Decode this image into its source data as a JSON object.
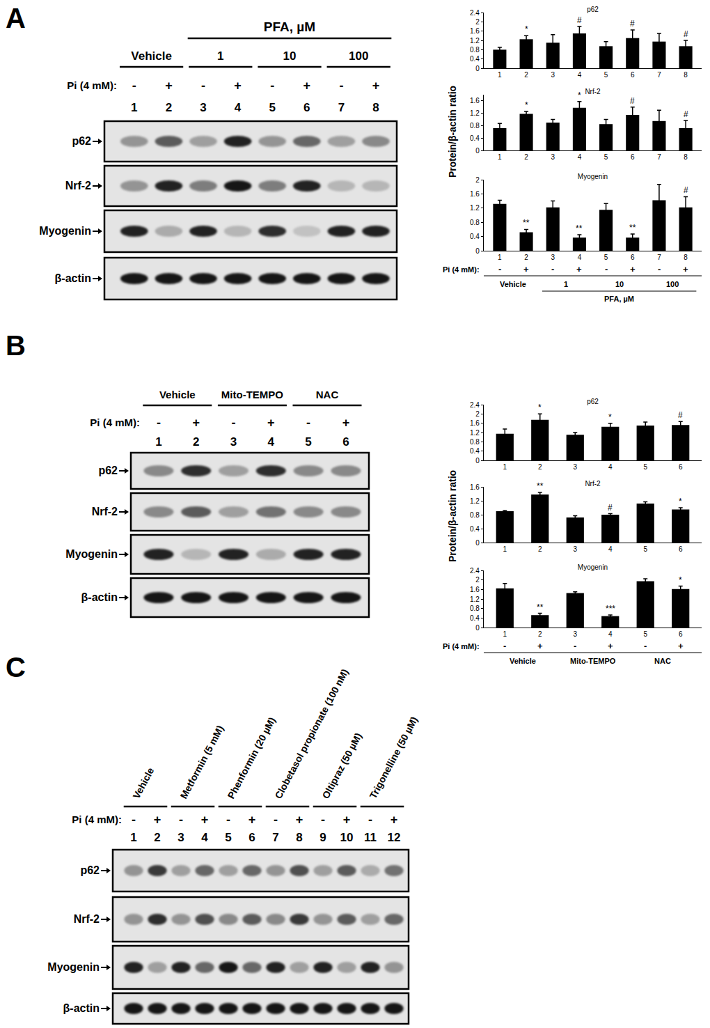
{
  "figure": {
    "panels": [
      {
        "label": "A",
        "y_label": "Protein/β-actin ratio",
        "blot": {
          "super_group": {
            "text": "PFA, µM",
            "lanes": [
              3,
              8
            ]
          },
          "groups": [
            {
              "text": "Vehicle",
              "lanes": [
                1,
                2
              ]
            },
            {
              "text": "1",
              "lanes": [
                3,
                4
              ]
            },
            {
              "text": "10",
              "lanes": [
                5,
                6
              ]
            },
            {
              "text": "100",
              "lanes": [
                7,
                8
              ]
            }
          ],
          "pi_label": "Pi (4 mM):",
          "pi": [
            "-",
            "+",
            "-",
            "+",
            "-",
            "+",
            "-",
            "+"
          ],
          "lanes": [
            1,
            2,
            3,
            4,
            5,
            6,
            7,
            8
          ],
          "rows": [
            {
              "name": "p62",
              "intensity": [
                0.35,
                0.6,
                0.3,
                0.85,
                0.35,
                0.55,
                0.3,
                0.4
              ]
            },
            {
              "name": "Nrf-2",
              "intensity": [
                0.35,
                0.85,
                0.45,
                0.9,
                0.45,
                0.85,
                0.2,
                0.2
              ]
            },
            {
              "name": "Myogenin",
              "intensity": [
                0.85,
                0.25,
                0.85,
                0.2,
                0.8,
                0.15,
                0.85,
                0.85
              ]
            },
            {
              "name": "β-actin",
              "intensity": [
                0.9,
                0.9,
                0.9,
                0.9,
                0.9,
                0.9,
                0.9,
                0.9
              ]
            }
          ]
        }
      },
      {
        "label": "B",
        "y_label": "Protein/β-actin ratio",
        "blot": {
          "groups": [
            {
              "text": "Vehicle",
              "lanes": [
                1,
                2
              ]
            },
            {
              "text": "Mito-TEMPO",
              "lanes": [
                3,
                4
              ]
            },
            {
              "text": "NAC",
              "lanes": [
                5,
                6
              ]
            }
          ],
          "pi_label": "Pi (4 mM):",
          "pi": [
            "-",
            "+",
            "-",
            "+",
            "-",
            "+"
          ],
          "lanes": [
            1,
            2,
            3,
            4,
            5,
            6
          ],
          "rows": [
            {
              "name": "p62",
              "intensity": [
                0.4,
                0.8,
                0.3,
                0.8,
                0.4,
                0.4
              ]
            },
            {
              "name": "Nrf-2",
              "intensity": [
                0.4,
                0.6,
                0.3,
                0.5,
                0.4,
                0.4
              ]
            },
            {
              "name": "Myogenin",
              "intensity": [
                0.85,
                0.2,
                0.85,
                0.25,
                0.85,
                0.85
              ]
            },
            {
              "name": "β-actin",
              "intensity": [
                0.9,
                0.9,
                0.9,
                0.9,
                0.9,
                0.9
              ]
            }
          ]
        }
      },
      {
        "label": "C",
        "blot": {
          "groups": [
            {
              "text": "Vehicle",
              "lanes": [
                1,
                2
              ]
            },
            {
              "text": "Metformin (5 mM)",
              "lanes": [
                3,
                4
              ]
            },
            {
              "text": "Phenformin (20 µM)",
              "lanes": [
                5,
                6
              ]
            },
            {
              "text": "Clobetasol propionate (100 nM)",
              "lanes": [
                7,
                8
              ]
            },
            {
              "text": "Oltipraz (50 µM)",
              "lanes": [
                9,
                10
              ]
            },
            {
              "text": "Trigonelline (50 µM)",
              "lanes": [
                11,
                12
              ]
            }
          ],
          "pi_label": "Pi (4 mM):",
          "pi": [
            "-",
            "+",
            "-",
            "+",
            "-",
            "+",
            "-",
            "+",
            "-",
            "+",
            "-",
            "+"
          ],
          "lanes": [
            1,
            2,
            3,
            4,
            5,
            6,
            7,
            8,
            9,
            10,
            11,
            12
          ],
          "rows": [
            {
              "name": "p62",
              "intensity": [
                0.35,
                0.75,
                0.3,
                0.55,
                0.3,
                0.55,
                0.35,
                0.65,
                0.3,
                0.6,
                0.25,
                0.5
              ]
            },
            {
              "name": "Nrf-2",
              "intensity": [
                0.35,
                0.8,
                0.35,
                0.65,
                0.4,
                0.6,
                0.4,
                0.75,
                0.35,
                0.6,
                0.3,
                0.55
              ]
            },
            {
              "name": "Myogenin",
              "intensity": [
                0.85,
                0.3,
                0.85,
                0.55,
                0.9,
                0.55,
                0.85,
                0.3,
                0.85,
                0.3,
                0.85,
                0.35
              ]
            },
            {
              "name": "β-actin",
              "intensity": [
                0.9,
                0.9,
                0.9,
                0.9,
                0.9,
                0.9,
                0.9,
                0.9,
                0.9,
                0.9,
                0.9,
                0.9
              ]
            }
          ]
        }
      }
    ]
  },
  "chart_data": [
    {
      "type": "bar",
      "panel": "A",
      "title": "p62",
      "categories": [
        "1",
        "2",
        "3",
        "4",
        "5",
        "6",
        "7",
        "8"
      ],
      "values": [
        0.8,
        1.25,
        1.1,
        1.5,
        0.95,
        1.3,
        1.15,
        0.95
      ],
      "errors": [
        0.1,
        0.15,
        0.35,
        0.3,
        0.2,
        0.35,
        0.35,
        0.25
      ],
      "annotations": [
        null,
        "*",
        null,
        "#",
        null,
        "#",
        null,
        "#"
      ],
      "color": "#000000",
      "ylim": [
        0,
        2.4
      ],
      "yticks": [
        0,
        0.4,
        0.8,
        1.2,
        1.6,
        2,
        2.4
      ],
      "grid": false
    },
    {
      "type": "bar",
      "panel": "A",
      "title": "Nrf-2",
      "categories": [
        "1",
        "2",
        "3",
        "4",
        "5",
        "6",
        "7",
        "8"
      ],
      "values": [
        0.72,
        1.18,
        0.9,
        1.38,
        0.85,
        1.15,
        0.95,
        0.72
      ],
      "errors": [
        0.15,
        0.08,
        0.1,
        0.2,
        0.15,
        0.25,
        0.35,
        0.25
      ],
      "annotations": [
        null,
        "*",
        null,
        "*",
        null,
        "#",
        null,
        "#"
      ],
      "color": "#000000",
      "ylim": [
        0,
        1.8
      ],
      "yticks": [
        0,
        0.4,
        0.8,
        1.2,
        1.6
      ],
      "grid": false
    },
    {
      "type": "bar",
      "panel": "A",
      "title": "Myogenin",
      "categories": [
        "1",
        "2",
        "3",
        "4",
        "5",
        "6",
        "7",
        "8"
      ],
      "values": [
        1.32,
        0.52,
        1.22,
        0.37,
        1.15,
        0.37,
        1.42,
        1.22
      ],
      "errors": [
        0.1,
        0.08,
        0.18,
        0.08,
        0.18,
        0.1,
        0.45,
        0.3
      ],
      "annotations": [
        null,
        "**",
        null,
        "**",
        null,
        "**",
        null,
        "#"
      ],
      "color": "#000000",
      "ylim": [
        0,
        2
      ],
      "yticks": [
        0,
        0.4,
        0.8,
        1.2,
        1.6,
        2
      ],
      "grid": false,
      "pi_label": "Pi (4 mM):",
      "pi": [
        "-",
        "+",
        "-",
        "+",
        "-",
        "+",
        "-",
        "+"
      ],
      "groups": [
        {
          "text": "Vehicle",
          "lanes": [
            1,
            2
          ]
        },
        {
          "text": "1",
          "lanes": [
            3,
            4
          ]
        },
        {
          "text": "10",
          "lanes": [
            5,
            6
          ]
        },
        {
          "text": "100",
          "lanes": [
            7,
            8
          ]
        }
      ],
      "super_group": {
        "text": "PFA, µM",
        "lanes": [
          3,
          8
        ]
      }
    },
    {
      "type": "bar",
      "panel": "B",
      "title": "p62",
      "categories": [
        "1",
        "2",
        "3",
        "4",
        "5",
        "6"
      ],
      "values": [
        1.15,
        1.75,
        1.1,
        1.45,
        1.5,
        1.52
      ],
      "errors": [
        0.2,
        0.25,
        0.1,
        0.15,
        0.15,
        0.15
      ],
      "annotations": [
        null,
        "*",
        null,
        "*",
        null,
        "#"
      ],
      "color": "#000000",
      "ylim": [
        0,
        2.4
      ],
      "yticks": [
        0,
        0.4,
        0.8,
        1.2,
        1.6,
        2,
        2.4
      ],
      "grid": false
    },
    {
      "type": "bar",
      "panel": "B",
      "title": "Nrf-2",
      "categories": [
        "1",
        "2",
        "3",
        "4",
        "5",
        "6"
      ],
      "values": [
        0.9,
        1.38,
        0.72,
        0.8,
        1.12,
        0.95
      ],
      "errors": [
        0.02,
        0.06,
        0.05,
        0.03,
        0.05,
        0.05
      ],
      "annotations": [
        null,
        "**",
        null,
        "#",
        null,
        "*"
      ],
      "color": "#000000",
      "ylim": [
        0,
        1.6
      ],
      "yticks": [
        0,
        0.4,
        0.8,
        1.2,
        1.6
      ],
      "grid": false
    },
    {
      "type": "bar",
      "panel": "B",
      "title": "Myogenin",
      "categories": [
        "1",
        "2",
        "3",
        "4",
        "5",
        "6"
      ],
      "values": [
        1.65,
        0.52,
        1.45,
        0.48,
        1.95,
        1.62
      ],
      "errors": [
        0.2,
        0.08,
        0.05,
        0.05,
        0.1,
        0.12
      ],
      "annotations": [
        null,
        "**",
        null,
        "***",
        null,
        "*"
      ],
      "color": "#000000",
      "ylim": [
        0,
        2.4
      ],
      "yticks": [
        0,
        0.4,
        0.8,
        1.2,
        1.6,
        2,
        2.4
      ],
      "grid": false,
      "pi_label": "Pi (4 mM):",
      "pi": [
        "-",
        "+",
        "-",
        "+",
        "-",
        "+"
      ],
      "groups": [
        {
          "text": "Vehicle",
          "lanes": [
            1,
            2
          ]
        },
        {
          "text": "Mito-TEMPO",
          "lanes": [
            3,
            4
          ]
        },
        {
          "text": "NAC",
          "lanes": [
            5,
            6
          ]
        }
      ]
    }
  ]
}
